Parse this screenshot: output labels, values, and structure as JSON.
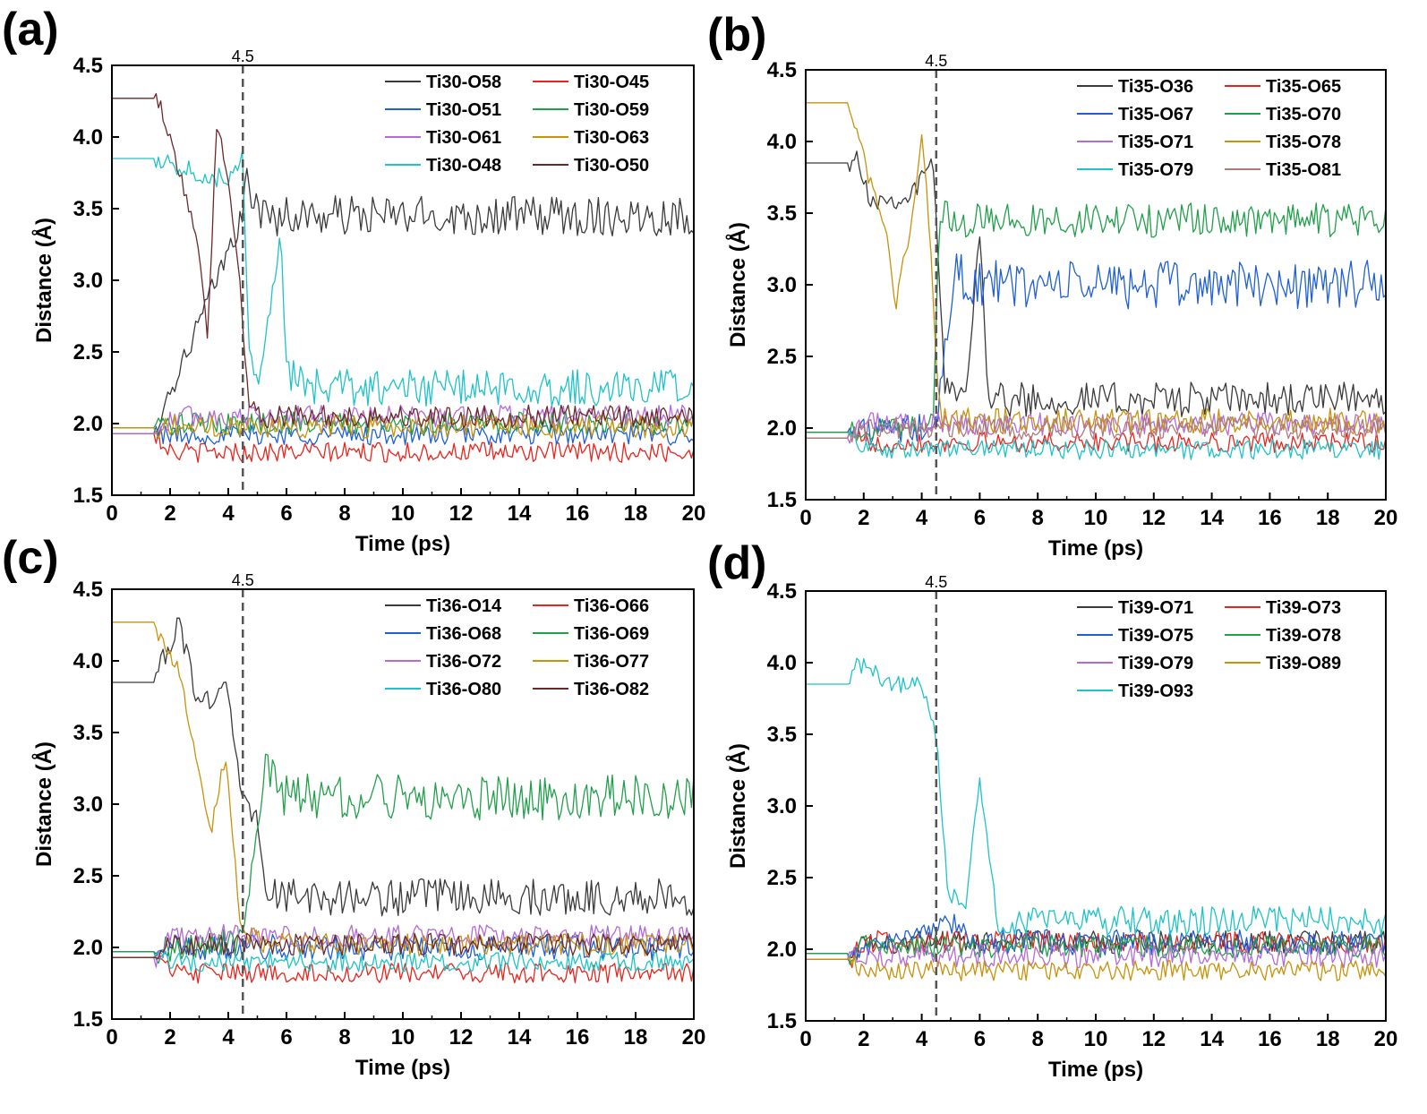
{
  "chart_data": [
    {
      "type": "line",
      "panel": "(a)",
      "xlabel": "Time (ps)",
      "ylabel": "Distance (Å)",
      "xlim": [
        0,
        20
      ],
      "ylim": [
        1.5,
        4.5
      ],
      "xticks": [
        0,
        2,
        4,
        6,
        8,
        10,
        12,
        14,
        16,
        18,
        20
      ],
      "yticks": [
        1.5,
        2.0,
        2.5,
        3.0,
        3.5,
        4.0,
        4.5
      ],
      "vline": {
        "x": 4.5,
        "label": "4.5"
      },
      "legend_position": "top-right",
      "series": [
        {
          "name": "Ti30-O58",
          "color": "#3a3a3a",
          "start": 1.97,
          "base": 3.45,
          "amp": 0.14,
          "transition": [
            [
              4.5,
              3.45
            ],
            [
              4.6,
              3.7
            ]
          ]
        },
        {
          "name": "Ti30-O45",
          "color": "#e8241c",
          "start": 1.93,
          "base": 1.8,
          "amp": 0.07
        },
        {
          "name": "Ti30-O51",
          "color": "#1f5fd6",
          "start": 1.93,
          "base": 1.92,
          "amp": 0.07
        },
        {
          "name": "Ti30-O59",
          "color": "#21a04a",
          "start": 1.97,
          "base": 2.0,
          "amp": 0.08
        },
        {
          "name": "Ti30-O61",
          "color": "#b46ad8",
          "start": 1.93,
          "base": 2.05,
          "amp": 0.08
        },
        {
          "name": "Ti30-O63",
          "color": "#c8920a",
          "start": 1.97,
          "base": 1.98,
          "amp": 0.08
        },
        {
          "name": "Ti30-O48",
          "color": "#1ec3c8",
          "start": 3.85,
          "base": 2.25,
          "amp": 0.13,
          "transition": [
            [
              4.0,
              3.7
            ],
            [
              4.5,
              3.9
            ],
            [
              4.7,
              2.5
            ],
            [
              5.0,
              2.3
            ],
            [
              5.8,
              3.28
            ],
            [
              6.0,
              2.4
            ]
          ]
        },
        {
          "name": "Ti30-O50",
          "color": "#6b2a2a",
          "start": 4.27,
          "base": 2.05,
          "amp": 0.08,
          "transition": [
            [
              1.7,
              4.2
            ],
            [
              2.4,
              3.7
            ],
            [
              3.0,
              3.2
            ],
            [
              3.3,
              2.6
            ],
            [
              3.6,
              4.1
            ],
            [
              4.0,
              3.7
            ],
            [
              4.4,
              3.0
            ],
            [
              4.7,
              2.1
            ]
          ]
        }
      ]
    },
    {
      "type": "line",
      "panel": "(b)",
      "xlabel": "Time (ps)",
      "ylabel": "Distance (Å)",
      "xlim": [
        0,
        20
      ],
      "ylim": [
        1.5,
        4.5
      ],
      "xticks": [
        0,
        2,
        4,
        6,
        8,
        10,
        12,
        14,
        16,
        18,
        20
      ],
      "yticks": [
        1.5,
        2.0,
        2.5,
        3.0,
        3.5,
        4.0,
        4.5
      ],
      "vline": {
        "x": 4.5,
        "label": "4.5"
      },
      "legend_position": "top-right",
      "series": [
        {
          "name": "Ti35-O36",
          "color": "#3a3a3a",
          "start": 3.85,
          "base": 2.2,
          "amp": 0.12,
          "transition": [
            [
              1.7,
              3.95
            ],
            [
              2.2,
              3.6
            ],
            [
              3.5,
              3.6
            ],
            [
              4.4,
              3.85
            ],
            [
              4.8,
              2.3
            ],
            [
              5.5,
              2.2
            ],
            [
              6.0,
              3.4
            ],
            [
              6.3,
              2.2
            ]
          ]
        },
        {
          "name": "Ti35-O65",
          "color": "#e8241c",
          "start": 1.93,
          "base": 1.9,
          "amp": 0.07
        },
        {
          "name": "Ti35-O67",
          "color": "#1f5fd6",
          "start": 1.97,
          "base": 3.0,
          "amp": 0.17,
          "transition": [
            [
              4.5,
              2.0
            ],
            [
              4.9,
              2.7
            ],
            [
              5.2,
              3.1
            ]
          ]
        },
        {
          "name": "Ti35-O70",
          "color": "#21a04a",
          "start": 1.97,
          "base": 3.45,
          "amp": 0.12,
          "transition": [
            [
              4.4,
              2.05
            ],
            [
              4.6,
              3.5
            ]
          ]
        },
        {
          "name": "Ti35-O71",
          "color": "#b46ad8",
          "start": 1.93,
          "base": 2.03,
          "amp": 0.08
        },
        {
          "name": "Ti35-O78",
          "color": "#c8920a",
          "start": 4.27,
          "base": 2.05,
          "amp": 0.09,
          "transition": [
            [
              1.6,
              4.2
            ],
            [
              2.1,
              3.8
            ],
            [
              2.8,
              3.3
            ],
            [
              3.1,
              2.85
            ],
            [
              3.6,
              3.4
            ],
            [
              4.0,
              4.05
            ],
            [
              4.3,
              3.3
            ],
            [
              4.6,
              2.1
            ]
          ]
        },
        {
          "name": "Ti35-O79",
          "color": "#1ec3c8",
          "start": 1.93,
          "base": 1.85,
          "amp": 0.07
        },
        {
          "name": "Ti35-O81",
          "color": "#b07a7a",
          "start": 1.93,
          "base": 2.0,
          "amp": 0.08
        }
      ]
    },
    {
      "type": "line",
      "panel": "(c)",
      "xlabel": "Time (ps)",
      "ylabel": "Distance (Å)",
      "xlim": [
        0,
        20
      ],
      "ylim": [
        1.5,
        4.5
      ],
      "xticks": [
        0,
        2,
        4,
        6,
        8,
        10,
        12,
        14,
        16,
        18,
        20
      ],
      "yticks": [
        1.5,
        2.0,
        2.5,
        3.0,
        3.5,
        4.0,
        4.5
      ],
      "vline": {
        "x": 4.5,
        "label": "4.5"
      },
      "legend_position": "top-right",
      "series": [
        {
          "name": "Ti36-O14",
          "color": "#3a3a3a",
          "start": 3.85,
          "base": 2.35,
          "amp": 0.13,
          "transition": [
            [
              1.6,
              3.95
            ],
            [
              2.3,
              4.25
            ],
            [
              3.0,
              3.7
            ],
            [
              4.0,
              3.8
            ],
            [
              4.5,
              3.0
            ],
            [
              5.0,
              2.9
            ],
            [
              5.3,
              2.4
            ]
          ]
        },
        {
          "name": "Ti36-O66",
          "color": "#e8241c",
          "start": 1.93,
          "base": 1.82,
          "amp": 0.07
        },
        {
          "name": "Ti36-O68",
          "color": "#1f5fd6",
          "start": 1.97,
          "base": 2.0,
          "amp": 0.09
        },
        {
          "name": "Ti36-O69",
          "color": "#21a04a",
          "start": 1.97,
          "base": 3.05,
          "amp": 0.16,
          "transition": [
            [
              4.5,
              2.05
            ],
            [
              5.0,
              2.8
            ],
            [
              5.3,
              3.3
            ]
          ]
        },
        {
          "name": "Ti36-O72",
          "color": "#b46ad8",
          "start": 1.93,
          "base": 2.08,
          "amp": 0.08
        },
        {
          "name": "Ti36-O77",
          "color": "#c8920a",
          "start": 4.27,
          "base": 2.02,
          "amp": 0.08,
          "transition": [
            [
              1.5,
              4.2
            ],
            [
              2.3,
              3.95
            ],
            [
              3.0,
              3.2
            ],
            [
              3.4,
              2.8
            ],
            [
              3.9,
              3.35
            ],
            [
              4.4,
              2.2
            ],
            [
              4.6,
              2.1
            ]
          ]
        },
        {
          "name": "Ti36-O80",
          "color": "#1ec3c8",
          "start": 1.93,
          "base": 1.9,
          "amp": 0.07
        },
        {
          "name": "Ti36-O82",
          "color": "#6b2a2a",
          "start": 1.93,
          "base": 2.02,
          "amp": 0.08
        }
      ]
    },
    {
      "type": "line",
      "panel": "(d)",
      "xlabel": "Time (ps)",
      "ylabel": "Distance (Å)",
      "xlim": [
        0,
        20
      ],
      "ylim": [
        1.5,
        4.5
      ],
      "xticks": [
        0,
        2,
        4,
        6,
        8,
        10,
        12,
        14,
        16,
        18,
        20
      ],
      "yticks": [
        1.5,
        2.0,
        2.5,
        3.0,
        3.5,
        4.0,
        4.5
      ],
      "vline": {
        "x": 4.5,
        "label": "4.5"
      },
      "legend_position": "top-right",
      "series": [
        {
          "name": "Ti39-O71",
          "color": "#3a3a3a",
          "start": 1.93,
          "base": 2.05,
          "amp": 0.08
        },
        {
          "name": "Ti39-O73",
          "color": "#e8241c",
          "start": 1.93,
          "base": 2.05,
          "amp": 0.08
        },
        {
          "name": "Ti39-O75",
          "color": "#1f5fd6",
          "start": 1.97,
          "base": 2.05,
          "amp": 0.09,
          "transition": [
            [
              4.5,
              2.15
            ],
            [
              5.0,
              2.2
            ]
          ]
        },
        {
          "name": "Ti39-O78",
          "color": "#21a04a",
          "start": 1.97,
          "base": 2.02,
          "amp": 0.08
        },
        {
          "name": "Ti39-O79",
          "color": "#b46ad8",
          "start": 1.93,
          "base": 1.95,
          "amp": 0.08
        },
        {
          "name": "Ti39-O89",
          "color": "#c8920a",
          "start": 1.93,
          "base": 1.85,
          "amp": 0.07
        },
        {
          "name": "Ti39-O93",
          "color": "#1ec3c8",
          "start": 3.85,
          "base": 2.2,
          "amp": 0.1,
          "transition": [
            [
              1.8,
              4.0
            ],
            [
              3.0,
              3.85
            ],
            [
              4.0,
              3.85
            ],
            [
              4.5,
              3.5
            ],
            [
              4.9,
              2.4
            ],
            [
              5.5,
              2.3
            ],
            [
              6.0,
              3.15
            ],
            [
              6.3,
              2.7
            ],
            [
              6.6,
              2.2
            ]
          ]
        }
      ]
    }
  ]
}
